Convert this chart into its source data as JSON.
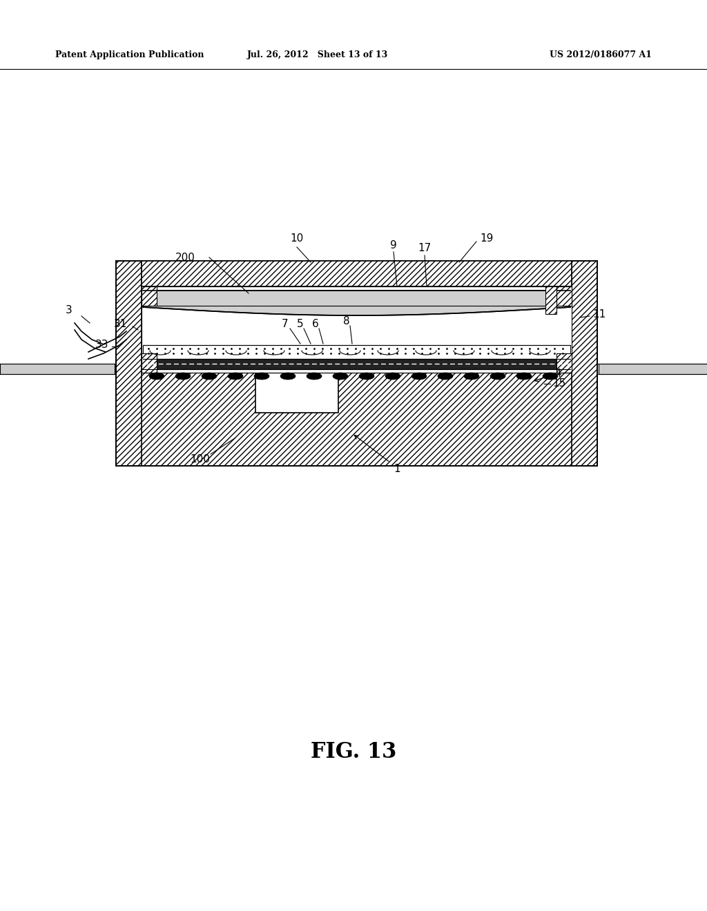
{
  "bg_color": "#ffffff",
  "title_left": "Patent Application Publication",
  "title_center": "Jul. 26, 2012   Sheet 13 of 13",
  "title_right": "US 2012/0186077 A1",
  "fig_label": "FIG. 13",
  "line_color": "#000000",
  "hatch_color": "#000000"
}
